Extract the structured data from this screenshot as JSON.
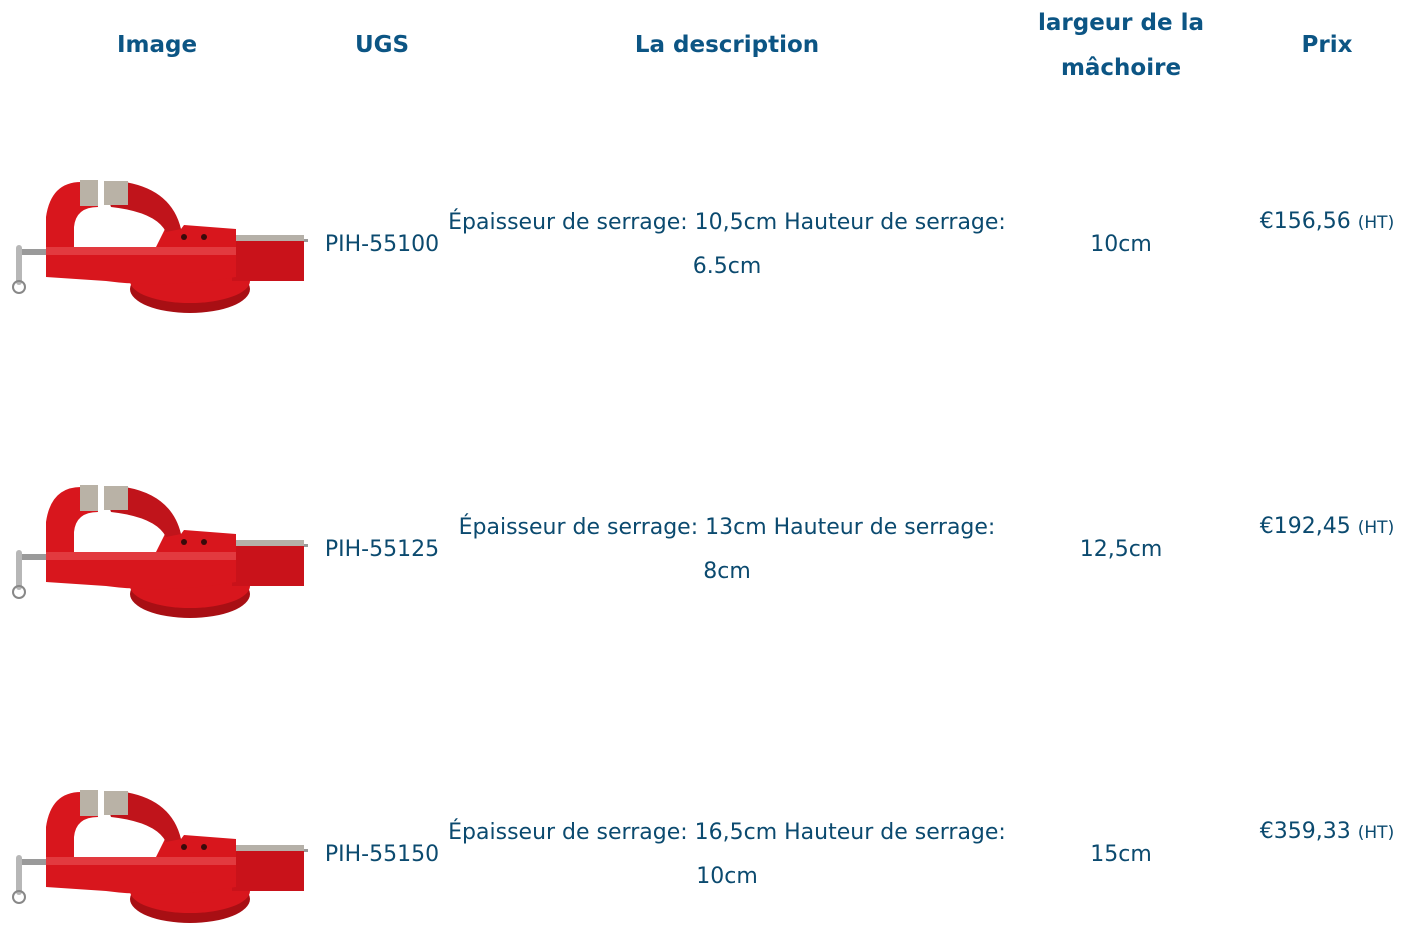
{
  "table": {
    "headers": [
      "Image",
      "UGS",
      "La description",
      "largeur de la mâchoire",
      "Prix"
    ],
    "rows": [
      {
        "sku": "PIH-55100",
        "description": "Épaisseur de serrage: 10,5cm Hauteur de serrage: 6.5cm",
        "width": "10cm",
        "price": "€156,56",
        "price_note": "(HT)"
      },
      {
        "sku": "PIH-55125",
        "description": "Épaisseur de serrage: 13cm Hauteur de serrage: 8cm",
        "width": "12,5cm",
        "price": "€192,45",
        "price_note": "(HT)"
      },
      {
        "sku": "PIH-55150",
        "description": "Épaisseur de serrage: 16,5cm Hauteur de serrage: 10cm",
        "width": "15cm",
        "price": "€359,33",
        "price_note": "(HT)"
      }
    ]
  }
}
